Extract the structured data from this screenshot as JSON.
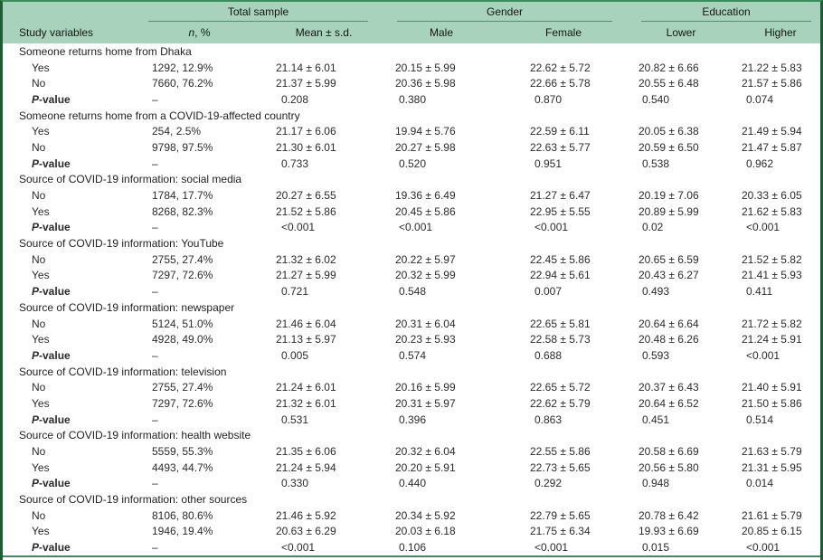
{
  "colors": {
    "header_band_green": "#a8d2bc",
    "frame_dark_green": "#1d5c35",
    "rule_green": "#4e9469",
    "top_bottom_rule_green": "#3e8b5d"
  },
  "table": {
    "groups": [
      {
        "label": "Total sample"
      },
      {
        "label": "Gender"
      },
      {
        "label": "Education"
      }
    ],
    "columns": {
      "study": "Study variables",
      "n_italic": "n",
      "n_rest": ", %",
      "mean": "Mean ± s.d.",
      "male": "Male",
      "female": "Female",
      "lower": "Lower",
      "higher": "Higher"
    },
    "sections": [
      {
        "title": "Someone returns home from Dhaka",
        "rows": [
          {
            "label": "Yes",
            "cells": [
              "1292, 12.9%",
              "21.14 ± 6.01",
              "20.15 ± 5.99",
              "22.62 ± 5.72",
              "20.82 ± 6.66",
              "21.22 ± 5.83"
            ]
          },
          {
            "label": "No",
            "cells": [
              "7660, 76.2%",
              "21.37 ± 5.99",
              "20.36 ± 5.98",
              "22.66 ± 5.78",
              "20.55 ± 6.48",
              "21.57 ± 5.86"
            ]
          },
          {
            "label": "P-value",
            "pvalue": true,
            "cells": [
              "–",
              "0.208",
              "0.380",
              "0.870",
              "0.540",
              "0.074"
            ]
          }
        ]
      },
      {
        "title": "Someone returns home from a COVID-19-affected country",
        "rows": [
          {
            "label": "Yes",
            "cells": [
              "254, 2.5%",
              "21.17 ± 6.06",
              "19.94 ± 5.76",
              "22.59 ± 6.11",
              "20.05 ± 6.38",
              "21.49 ± 5.94"
            ]
          },
          {
            "label": "No",
            "cells": [
              "9798, 97.5%",
              "21.30 ± 6.01",
              "20.27 ± 5.98",
              "22.63 ± 5.77",
              "20.59 ± 6.50",
              "21.47 ± 5.87"
            ]
          },
          {
            "label": "P-value",
            "pvalue": true,
            "cells": [
              "–",
              "0.733",
              "0.520",
              "0.951",
              "0.538",
              "0.962"
            ]
          }
        ]
      },
      {
        "title": "Source of COVID-19 information: social media",
        "rows": [
          {
            "label": "No",
            "cells": [
              "1784, 17.7%",
              "20.27 ± 6.55",
              "19.36 ± 6.49",
              "21.27 ± 6.47",
              "20.19 ± 7.06",
              "20.33 ± 6.05"
            ]
          },
          {
            "label": "Yes",
            "cells": [
              "8268, 82.3%",
              "21.52 ± 5.86",
              "20.45 ± 5.86",
              "22.95 ± 5.55",
              "20.89 ± 5.99",
              "21.62 ± 5.83"
            ]
          },
          {
            "label": "P-value",
            "pvalue": true,
            "cells": [
              "–",
              "<0.001",
              "<0.001",
              "<0.001",
              "0.02",
              "<0.001"
            ]
          }
        ]
      },
      {
        "title": "Source of COVID-19 information: YouTube",
        "rows": [
          {
            "label": "No",
            "cells": [
              "2755, 27.4%",
              "21.32 ± 6.02",
              "20.22 ± 5.97",
              "22.45 ± 5.86",
              "20.65 ± 6.59",
              "21.52 ± 5.82"
            ]
          },
          {
            "label": "Yes",
            "cells": [
              "7297, 72.6%",
              "21.27 ± 5.99",
              "20.32 ± 5.99",
              "22.94 ± 5.61",
              "20.43 ± 6.27",
              "21.41 ± 5.93"
            ]
          },
          {
            "label": "P-value",
            "pvalue": true,
            "cells": [
              "–",
              "0.721",
              "0.548",
              "0.007",
              "0.493",
              "0.411"
            ]
          }
        ]
      },
      {
        "title": "Source of COVID-19 information: newspaper",
        "rows": [
          {
            "label": "No",
            "cells": [
              "5124, 51.0%",
              "21.46 ± 6.04",
              "20.31 ± 6.04",
              "22.65 ± 5.81",
              "20.64 ± 6.64",
              "21.72 ± 5.82"
            ]
          },
          {
            "label": "Yes",
            "cells": [
              "4928, 49.0%",
              "21.13 ± 5.97",
              "20.23 ± 5.93",
              "22.58 ± 5.73",
              "20.48 ± 6.26",
              "21.24 ± 5.91"
            ]
          },
          {
            "label": "P-value",
            "pvalue": true,
            "cells": [
              "–",
              "0.005",
              "0.574",
              "0.688",
              "0.593",
              "<0.001"
            ]
          }
        ]
      },
      {
        "title": "Source of COVID-19 information: television",
        "rows": [
          {
            "label": "No",
            "cells": [
              "2755, 27.4%",
              "21.24 ± 6.01",
              "20.16 ± 5.99",
              "22.65 ± 5.72",
              "20.37 ± 6.43",
              "21.40 ± 5.91"
            ]
          },
          {
            "label": "Yes",
            "cells": [
              "7297, 72.6%",
              "21.32 ± 6.01",
              "20.31 ± 5.97",
              "22.62 ± 5.79",
              "20.64 ± 6.52",
              "21.50 ± 5.86"
            ]
          },
          {
            "label": "P-value",
            "pvalue": true,
            "cells": [
              "–",
              "0.531",
              "0.396",
              "0.863",
              "0.451",
              "0.514"
            ]
          }
        ]
      },
      {
        "title": "Source of COVID-19 information: health website",
        "rows": [
          {
            "label": "No",
            "cells": [
              "5559, 55.3%",
              "21.35 ± 6.06",
              "20.32 ± 6.04",
              "22.55 ± 5.86",
              "20.58 ± 6.69",
              "21.63 ± 5.79"
            ]
          },
          {
            "label": "Yes",
            "cells": [
              "4493, 44.7%",
              "21.24 ± 5.94",
              "20.20 ± 5.91",
              "22.73 ± 5.65",
              "20.56 ± 5.80",
              "21.31 ± 5.95"
            ]
          },
          {
            "label": "P-value",
            "pvalue": true,
            "cells": [
              "–",
              "0.330",
              "0.440",
              "0.292",
              "0.948",
              "0.014"
            ]
          }
        ]
      },
      {
        "title": "Source of COVID-19 information: other sources",
        "rows": [
          {
            "label": "No",
            "cells": [
              "8106, 80.6%",
              "21.46 ± 5.92",
              "20.34 ± 5.92",
              "22.79 ± 5.65",
              "20.78 ± 6.42",
              "21.61 ± 5.79"
            ]
          },
          {
            "label": "Yes",
            "cells": [
              "1946, 19.4%",
              "20.63 ± 6.29",
              "20.03 ± 6.18",
              "21.75 ± 6.34",
              "19.93 ± 6.69",
              "20.85 ± 6.15"
            ]
          },
          {
            "label": "P-value",
            "pvalue": true,
            "cells": [
              "–",
              "<0.001",
              "0.106",
              "<0.001",
              "0.015",
              "<0.001"
            ]
          }
        ]
      }
    ]
  }
}
